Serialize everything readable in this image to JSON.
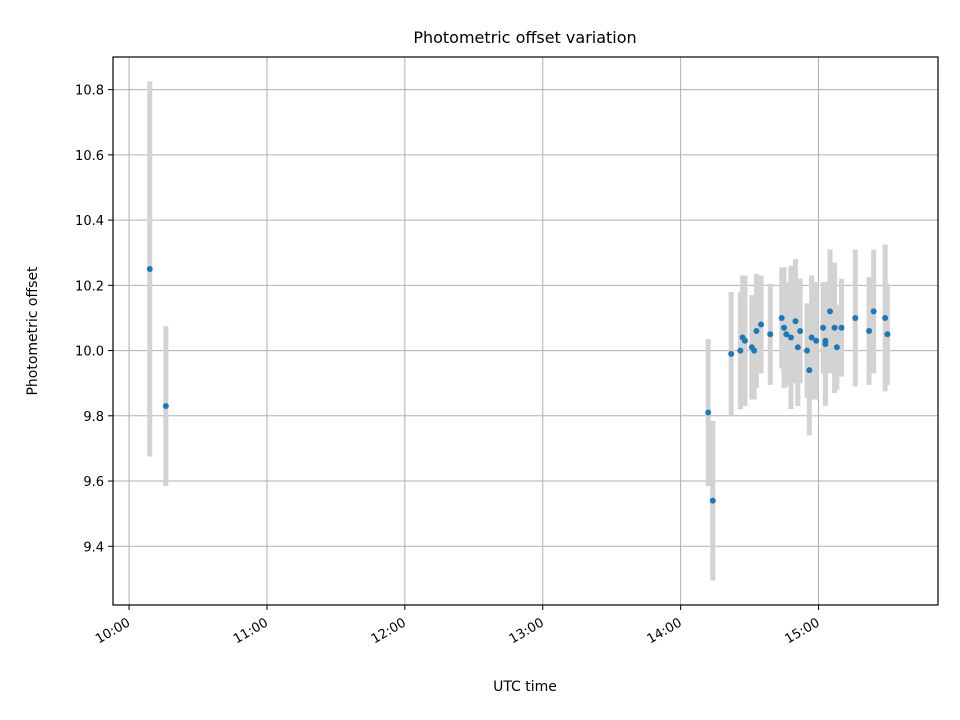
{
  "chart_data": {
    "type": "scatter",
    "title": "Photometric offset variation",
    "xlabel": "UTC time",
    "ylabel": "Photometric offset",
    "x_is_time": true,
    "xticks": [
      "10:00",
      "11:00",
      "12:00",
      "13:00",
      "14:00",
      "15:00"
    ],
    "yticks": [
      9.4,
      9.6,
      9.8,
      10.0,
      10.2,
      10.4,
      10.6,
      10.8
    ],
    "xlim": [
      "09:53",
      "15:52"
    ],
    "ylim": [
      9.22,
      10.9
    ],
    "grid": true,
    "point_color": "#1f77b4",
    "errorbar_color": "#d3d3d3",
    "series": [
      {
        "points": [
          {
            "x": "10:09",
            "y": 10.25,
            "err": 0.575
          },
          {
            "x": "10:16",
            "y": 9.83,
            "err": 0.245
          },
          {
            "x": "14:12",
            "y": 9.81,
            "err": 0.225
          },
          {
            "x": "14:14",
            "y": 9.54,
            "err": 0.245
          },
          {
            "x": "14:22",
            "y": 9.99,
            "err": 0.19
          },
          {
            "x": "14:26",
            "y": 10.0,
            "err": 0.18
          },
          {
            "x": "14:27",
            "y": 10.04,
            "err": 0.19
          },
          {
            "x": "14:28",
            "y": 10.03,
            "err": 0.2
          },
          {
            "x": "14:31",
            "y": 10.01,
            "err": 0.16
          },
          {
            "x": "14:32",
            "y": 10.0,
            "err": 0.15
          },
          {
            "x": "14:33",
            "y": 10.06,
            "err": 0.175
          },
          {
            "x": "14:35",
            "y": 10.08,
            "err": 0.15
          },
          {
            "x": "14:39",
            "y": 10.05,
            "err": 0.155
          },
          {
            "x": "14:44",
            "y": 10.1,
            "err": 0.155
          },
          {
            "x": "14:45",
            "y": 10.07,
            "err": 0.185
          },
          {
            "x": "14:46",
            "y": 10.05,
            "err": 0.16
          },
          {
            "x": "14:48",
            "y": 10.04,
            "err": 0.22
          },
          {
            "x": "14:50",
            "y": 10.09,
            "err": 0.19
          },
          {
            "x": "14:52",
            "y": 10.06,
            "err": 0.16
          },
          {
            "x": "14:51",
            "y": 10.01,
            "err": 0.18
          },
          {
            "x": "14:55",
            "y": 10.0,
            "err": 0.145
          },
          {
            "x": "14:56",
            "y": 9.94,
            "err": 0.2
          },
          {
            "x": "14:57",
            "y": 10.04,
            "err": 0.19
          },
          {
            "x": "14:59",
            "y": 10.03,
            "err": 0.18
          },
          {
            "x": "15:02",
            "y": 10.07,
            "err": 0.14
          },
          {
            "x": "15:03",
            "y": 10.03,
            "err": 0.18
          },
          {
            "x": "15:03",
            "y": 10.02,
            "err": 0.19
          },
          {
            "x": "15:05",
            "y": 10.12,
            "err": 0.19
          },
          {
            "x": "15:07",
            "y": 10.07,
            "err": 0.2
          },
          {
            "x": "15:08",
            "y": 10.01,
            "err": 0.13
          },
          {
            "x": "15:10",
            "y": 10.07,
            "err": 0.15
          },
          {
            "x": "15:16",
            "y": 10.1,
            "err": 0.21
          },
          {
            "x": "15:22",
            "y": 10.06,
            "err": 0.165
          },
          {
            "x": "15:24",
            "y": 10.12,
            "err": 0.19
          },
          {
            "x": "15:29",
            "y": 10.1,
            "err": 0.225
          },
          {
            "x": "15:30",
            "y": 10.05,
            "err": 0.155
          }
        ]
      }
    ]
  }
}
